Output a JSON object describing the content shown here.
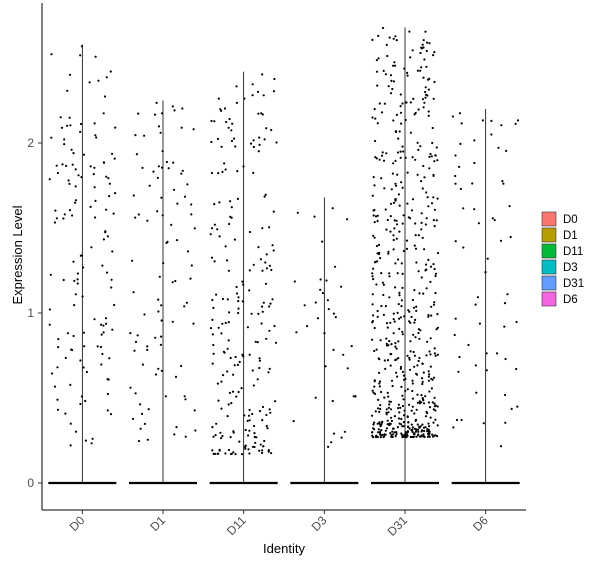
{
  "chart_data": {
    "type": "violin",
    "xlabel": "Identity",
    "ylabel": "Expression Level",
    "categories": [
      "D0",
      "D1",
      "D11",
      "D3",
      "D31",
      "D6"
    ],
    "yticks": [
      0,
      1,
      2
    ],
    "ylim": [
      -0.15,
      2.82
    ],
    "series": [
      {
        "name": "D0",
        "color": "#F8766D",
        "max": 2.58,
        "n_points": 140,
        "lo": 0.2,
        "hi": 2.58,
        "skew": 0
      },
      {
        "name": "D1",
        "color": "#B79F00",
        "max": 2.25,
        "n_points": 95,
        "lo": 0.22,
        "hi": 2.25,
        "skew": 0
      },
      {
        "name": "D11",
        "color": "#00BA38",
        "max": 2.42,
        "n_points": 230,
        "lo": 0.17,
        "hi": 2.42,
        "skew": 0.35
      },
      {
        "name": "D3",
        "color": "#00BFC4",
        "max": 1.68,
        "n_points": 38,
        "lo": 0.2,
        "hi": 1.68,
        "skew": 0
      },
      {
        "name": "D31",
        "color": "#619CFF",
        "max": 2.68,
        "n_points": 610,
        "lo": 0.27,
        "hi": 2.68,
        "skew": 0.45
      },
      {
        "name": "D6",
        "color": "#F564E3",
        "max": 2.2,
        "n_points": 62,
        "lo": 0.2,
        "hi": 2.2,
        "skew": 0
      }
    ],
    "legend_position": "right",
    "grid": false
  }
}
